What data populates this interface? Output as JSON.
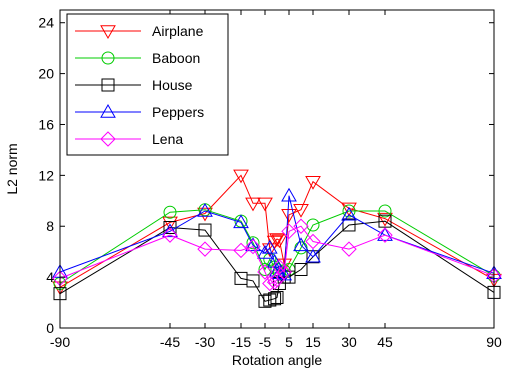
{
  "chart_data": {
    "type": "line",
    "title": "",
    "xlabel": "Rotation angle",
    "ylabel": "L2 norm",
    "xlim": [
      -90,
      90
    ],
    "ylim": [
      0,
      25
    ],
    "grid": false,
    "legend_placement": "top-left",
    "x_ticks": [
      -90,
      -45,
      -30,
      -15,
      -5,
      5,
      15,
      30,
      45,
      90
    ],
    "x_tick_labels": [
      "-90",
      "-45",
      "-30",
      "-15",
      "-5",
      "5",
      "15",
      "30",
      "45",
      "90"
    ],
    "y_ticks": [
      0,
      4,
      8,
      12,
      16,
      20,
      24
    ],
    "y_tick_labels": [
      "0",
      "4",
      "8",
      "12",
      "16",
      "20",
      "24"
    ],
    "x": [
      -90,
      -45,
      -30,
      -15,
      -10,
      -5,
      -3,
      -1,
      0,
      1,
      3,
      5,
      10,
      15,
      30,
      45,
      90
    ],
    "series": [
      {
        "name": "Airplane",
        "color": "#ff0000",
        "marker": "triangle-down",
        "values": [
          3.2,
          8.3,
          9.0,
          12.0,
          9.8,
          9.8,
          6.2,
          6.8,
          7.0,
          6.9,
          5.0,
          8.9,
          9.3,
          11.5,
          9.4,
          8.6,
          3.8
        ]
      },
      {
        "name": "Baboon",
        "color": "#00cc00",
        "marker": "circle",
        "values": [
          3.5,
          9.1,
          9.3,
          8.4,
          6.7,
          4.6,
          5.4,
          4.8,
          4.6,
          4.3,
          4.5,
          4.6,
          6.3,
          8.1,
          9.2,
          9.2,
          4.1
        ]
      },
      {
        "name": "House",
        "color": "#000000",
        "marker": "square",
        "values": [
          2.7,
          7.9,
          7.7,
          3.9,
          3.7,
          2.1,
          2.2,
          2.3,
          2.4,
          3.5,
          4.0,
          4.0,
          4.6,
          5.6,
          8.1,
          8.4,
          2.8
        ]
      },
      {
        "name": "Peppers",
        "color": "#0000ff",
        "marker": "triangle-up",
        "values": [
          4.4,
          7.6,
          9.2,
          8.3,
          6.5,
          5.9,
          6.3,
          5.2,
          4.5,
          4.3,
          4.2,
          10.4,
          6.5,
          5.6,
          8.9,
          7.3,
          4.3
        ]
      },
      {
        "name": "Lena",
        "color": "#ff00ff",
        "marker": "diamond",
        "values": [
          3.9,
          7.3,
          6.2,
          6.1,
          6.4,
          4.4,
          3.5,
          3.6,
          3.8,
          4.8,
          4.4,
          7.6,
          8.0,
          6.8,
          6.2,
          7.3,
          4.1
        ]
      }
    ]
  }
}
